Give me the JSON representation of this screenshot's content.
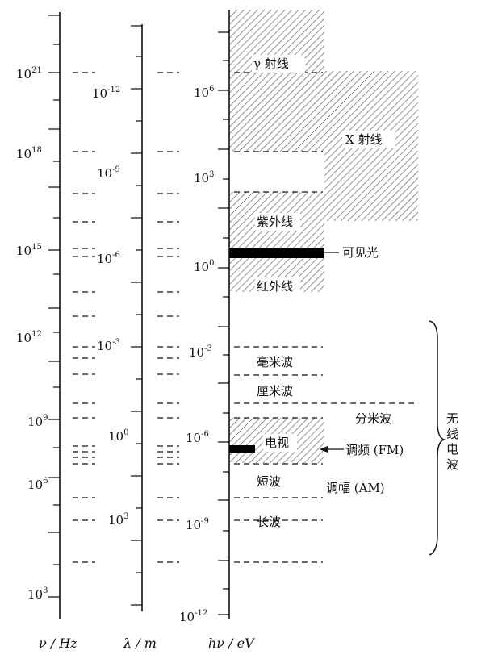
{
  "axes": {
    "frequency": {
      "label": "ν / Hz",
      "ticks": [
        {
          "base": "10",
          "exp": "21"
        },
        {
          "base": "10",
          "exp": "18"
        },
        {
          "base": "10",
          "exp": "15"
        },
        {
          "base": "10",
          "exp": "12"
        },
        {
          "base": "10",
          "exp": "9"
        },
        {
          "base": "10",
          "exp": "6"
        },
        {
          "base": "10",
          "exp": "3"
        }
      ]
    },
    "wavelength": {
      "label": "λ / m",
      "ticks": [
        {
          "base": "10",
          "exp": "-12"
        },
        {
          "base": "10",
          "exp": "-9"
        },
        {
          "base": "10",
          "exp": "-6"
        },
        {
          "base": "10",
          "exp": "-3"
        },
        {
          "base": "10",
          "exp": "0"
        },
        {
          "base": "10",
          "exp": "3"
        }
      ]
    },
    "energy": {
      "label": "hν / eV",
      "ticks": [
        {
          "base": "10",
          "exp": "6"
        },
        {
          "base": "10",
          "exp": "3"
        },
        {
          "base": "10",
          "exp": "0"
        },
        {
          "base": "10",
          "exp": "-3"
        },
        {
          "base": "10",
          "exp": "-6"
        },
        {
          "base": "10",
          "exp": "-9"
        },
        {
          "base": "10",
          "exp": "-12"
        }
      ]
    }
  },
  "bands": {
    "gamma": "γ 射线",
    "xray": "X 射线",
    "ultraviolet": "紫外线",
    "visible": "可见光",
    "infrared": "红外线",
    "millimeter": "毫米波",
    "centimeter": "厘米波",
    "decimeter": "分米波",
    "television": "电视",
    "fm": "调频 (FM)",
    "shortwave": "短波",
    "am": "调幅 (AM)",
    "longwave": "长波"
  },
  "radio_group": {
    "chars": [
      "无",
      "线",
      "电",
      "波"
    ]
  }
}
